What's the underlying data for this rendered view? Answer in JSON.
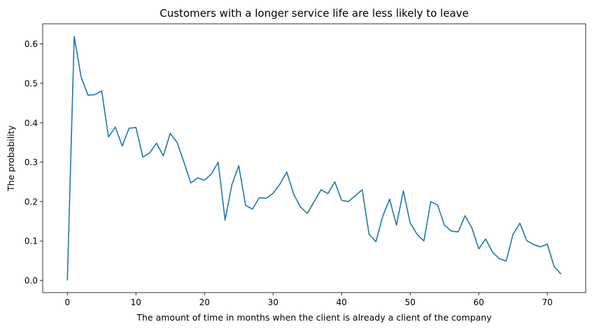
{
  "chart_data": {
    "type": "line",
    "title": "Customers with a longer service life are less likely to leave",
    "xlabel": "The amount of time in months when the client is already a client of the company",
    "ylabel": "The probability",
    "xlim": [
      -3.6,
      75.6
    ],
    "ylim": [
      -0.031,
      0.651
    ],
    "xticks": [
      0,
      10,
      20,
      30,
      40,
      50,
      60,
      70
    ],
    "yticks": [
      0.0,
      0.1,
      0.2,
      0.3,
      0.4,
      0.5,
      0.6
    ],
    "grid": false,
    "line_color": "#1f77b4",
    "series": [
      {
        "x": [
          0,
          1,
          2,
          3,
          4,
          5,
          6,
          7,
          8,
          9,
          10,
          11,
          12,
          13,
          14,
          15,
          16,
          17,
          18,
          19,
          20,
          21,
          22,
          23,
          24,
          25,
          26,
          27,
          28,
          29,
          30,
          31,
          32,
          33,
          34,
          35,
          36,
          37,
          38,
          39,
          40,
          41,
          42,
          43,
          44,
          45,
          46,
          47,
          48,
          49,
          50,
          51,
          52,
          53,
          54,
          55,
          56,
          57,
          58,
          59,
          60,
          61,
          62,
          63,
          64,
          65,
          66,
          67,
          68,
          69,
          70,
          71,
          72
        ],
        "values": [
          0.0,
          0.619,
          0.516,
          0.47,
          0.471,
          0.481,
          0.364,
          0.389,
          0.341,
          0.386,
          0.388,
          0.313,
          0.323,
          0.348,
          0.316,
          0.373,
          0.35,
          0.3,
          0.247,
          0.26,
          0.254,
          0.27,
          0.3,
          0.153,
          0.243,
          0.291,
          0.19,
          0.181,
          0.21,
          0.208,
          0.221,
          0.244,
          0.275,
          0.219,
          0.186,
          0.17,
          0.2,
          0.23,
          0.22,
          0.25,
          0.203,
          0.2,
          0.215,
          0.23,
          0.117,
          0.098,
          0.163,
          0.206,
          0.14,
          0.227,
          0.146,
          0.117,
          0.1,
          0.2,
          0.191,
          0.14,
          0.125,
          0.123,
          0.164,
          0.133,
          0.08,
          0.105,
          0.072,
          0.055,
          0.049,
          0.117,
          0.145,
          0.101,
          0.091,
          0.085,
          0.092,
          0.035,
          0.016
        ]
      }
    ]
  }
}
